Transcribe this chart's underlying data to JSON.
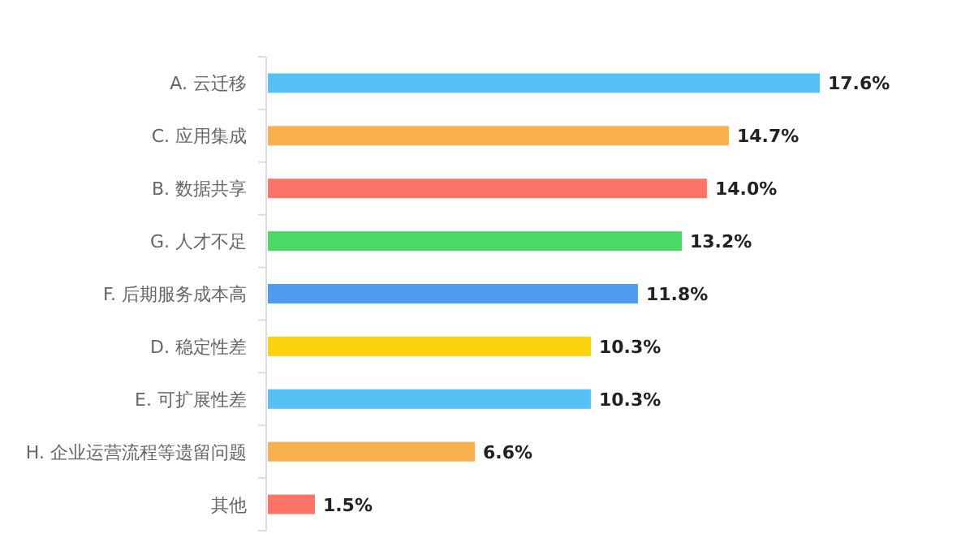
{
  "chart_data": {
    "type": "bar",
    "orientation": "horizontal",
    "categories": [
      "A. 云迁移",
      "C. 应用集成",
      "B. 数据共享",
      "G. 人才不足",
      "F. 后期服务成本高",
      "D. 稳定性差",
      "E. 可扩展性差",
      "H. 企业运营流程等遗留问题",
      "其他"
    ],
    "values": [
      17.6,
      14.7,
      14.0,
      13.2,
      11.8,
      10.3,
      10.3,
      6.6,
      1.5
    ],
    "value_labels": [
      "17.6%",
      "14.7%",
      "14.0%",
      "13.2%",
      "11.8%",
      "10.3%",
      "10.3%",
      "6.6%",
      "1.5%"
    ],
    "colors": [
      "#56c1f5",
      "#f9b04e",
      "#fb7467",
      "#4bd865",
      "#4e9bf0",
      "#fad20d",
      "#56c1f5",
      "#f9b04e",
      "#fb7467"
    ]
  }
}
